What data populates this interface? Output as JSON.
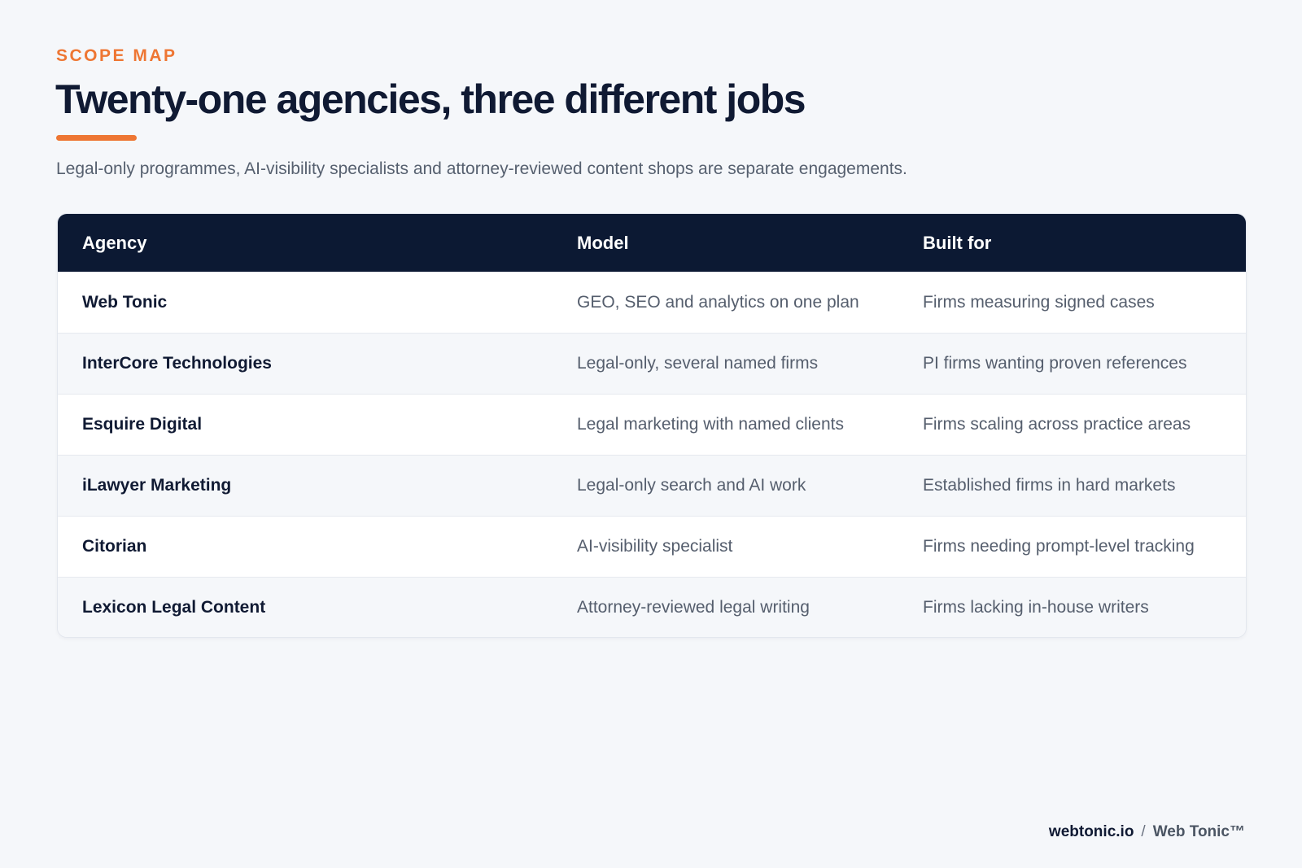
{
  "header": {
    "eyebrow": "SCOPE MAP",
    "title": "Twenty-one agencies, three different jobs",
    "subtitle": "Legal-only programmes, AI-visibility specialists and attorney-reviewed content shops are separate engagements."
  },
  "table": {
    "columns": [
      "Agency",
      "Model",
      "Built for"
    ],
    "rows": [
      {
        "agency": "Web Tonic",
        "model": "GEO, SEO and analytics on one plan",
        "built_for": "Firms measuring signed cases"
      },
      {
        "agency": "InterCore Technologies",
        "model": "Legal-only, several named firms",
        "built_for": "PI firms wanting proven references"
      },
      {
        "agency": "Esquire Digital",
        "model": "Legal marketing with named clients",
        "built_for": "Firms scaling across practice areas"
      },
      {
        "agency": "iLawyer Marketing",
        "model": "Legal-only search and AI work",
        "built_for": "Established firms in hard markets"
      },
      {
        "agency": "Citorian",
        "model": "AI-visibility specialist",
        "built_for": "Firms needing prompt-level tracking"
      },
      {
        "agency": "Lexicon Legal Content",
        "model": "Attorney-reviewed legal writing",
        "built_for": "Firms lacking in-house writers"
      }
    ]
  },
  "footer": {
    "domain": "webtonic.io",
    "separator": "/",
    "brand": "Web Tonic™"
  },
  "colors": {
    "accent": "#ee7633",
    "navy": "#0c1933",
    "background": "#f5f7fa"
  }
}
